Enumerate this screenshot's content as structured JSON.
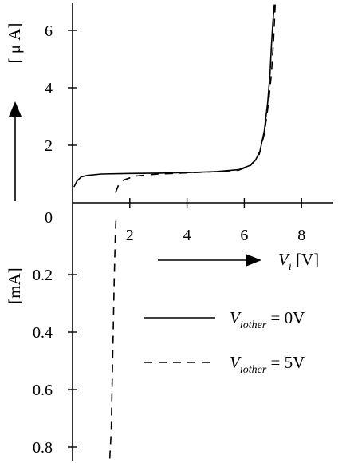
{
  "chart_data": {
    "type": "line",
    "xlabel": {
      "base": "V",
      "sub": "i",
      "unit": " [V]"
    },
    "ylabel_top": "[ μ A]",
    "ylabel_bottom": "[mA]",
    "x_ticks": [
      "2",
      "4",
      "6",
      "8"
    ],
    "x_tick_values": [
      2,
      4,
      6,
      8
    ],
    "y_top_ticks": [
      "2",
      "4",
      "6"
    ],
    "y_top_tick_values": [
      2,
      4,
      6
    ],
    "y_bottom_ticks": [
      "0",
      "0.2",
      "0.4",
      "0.6",
      "0.8"
    ],
    "y_bottom_tick_values": [
      0,
      0.2,
      0.4,
      0.6,
      0.8
    ],
    "xlim": [
      0,
      9
    ],
    "ylim_top_uA": [
      0,
      6.9
    ],
    "ylim_bottom_mA": [
      0,
      0.89
    ],
    "legend": [
      {
        "base": "V",
        "sub": "iother",
        "value": " = 0V",
        "style": "solid"
      },
      {
        "base": "V",
        "sub": "iother",
        "value": " = 5V",
        "style": "dashed"
      }
    ],
    "series": [
      {
        "style": "solid",
        "x": [
          0.05,
          0.15,
          0.3,
          0.5,
          1.0,
          2.0,
          3.0,
          4.0,
          5.0,
          5.8,
          6.2,
          6.4,
          6.55,
          6.7,
          6.82,
          6.9,
          6.95,
          7.0,
          7.05
        ],
        "y_uA": [
          0.55,
          0.75,
          0.9,
          0.95,
          1.0,
          1.02,
          1.03,
          1.05,
          1.08,
          1.15,
          1.3,
          1.5,
          1.8,
          2.5,
          3.5,
          4.5,
          5.5,
          6.3,
          6.9
        ]
      },
      {
        "style": "dashed",
        "x": [
          1.5,
          1.6,
          1.8,
          2.2,
          3.0,
          4.0,
          5.0,
          5.8,
          6.2,
          6.5,
          6.7,
          6.85,
          6.95,
          7.02,
          7.08
        ],
        "y_uA": [
          0.35,
          0.6,
          0.8,
          0.93,
          1.0,
          1.04,
          1.08,
          1.13,
          1.28,
          1.6,
          2.4,
          3.5,
          4.5,
          5.6,
          6.9
        ]
      },
      {
        "style": "dashed",
        "x": [
          1.3,
          1.32,
          1.35,
          1.38,
          1.42,
          1.46,
          1.5,
          1.52
        ],
        "y_mA": [
          0.84,
          0.8,
          0.75,
          0.6,
          0.4,
          0.2,
          0.05,
          0
        ]
      }
    ]
  }
}
